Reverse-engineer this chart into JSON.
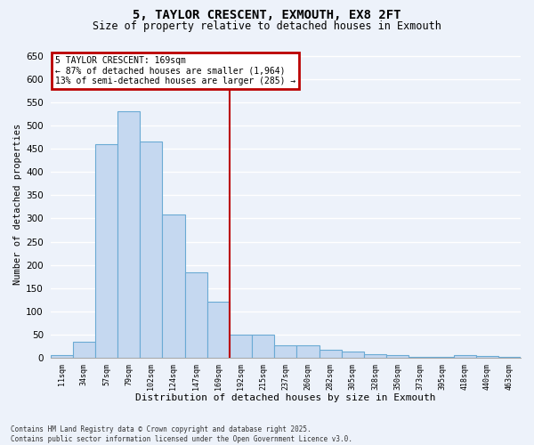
{
  "title": "5, TAYLOR CRESCENT, EXMOUTH, EX8 2FT",
  "subtitle": "Size of property relative to detached houses in Exmouth",
  "xlabel": "Distribution of detached houses by size in Exmouth",
  "ylabel": "Number of detached properties",
  "footer_line1": "Contains HM Land Registry data © Crown copyright and database right 2025.",
  "footer_line2": "Contains public sector information licensed under the Open Government Licence v3.0.",
  "categories": [
    "11sqm",
    "34sqm",
    "57sqm",
    "79sqm",
    "102sqm",
    "124sqm",
    "147sqm",
    "169sqm",
    "192sqm",
    "215sqm",
    "237sqm",
    "260sqm",
    "282sqm",
    "305sqm",
    "328sqm",
    "350sqm",
    "373sqm",
    "395sqm",
    "418sqm",
    "440sqm",
    "463sqm"
  ],
  "values": [
    5,
    35,
    460,
    530,
    465,
    308,
    184,
    120,
    50,
    50,
    27,
    27,
    17,
    13,
    8,
    5,
    3,
    2,
    5,
    4,
    3
  ],
  "bar_color": "#c5d8f0",
  "bar_edge_color": "#6aaad4",
  "background_color": "#edf2fa",
  "grid_color": "#ffffff",
  "vline_x_index": 7,
  "vline_color": "#bb0000",
  "annotation_title": "5 TAYLOR CRESCENT: 169sqm",
  "annotation_line1": "← 87% of detached houses are smaller (1,964)",
  "annotation_line2": "13% of semi-detached houses are larger (285) →",
  "annotation_box_edgecolor": "#bb0000",
  "ylim": [
    0,
    660
  ],
  "yticks": [
    0,
    50,
    100,
    150,
    200,
    250,
    300,
    350,
    400,
    450,
    500,
    550,
    600,
    650
  ]
}
